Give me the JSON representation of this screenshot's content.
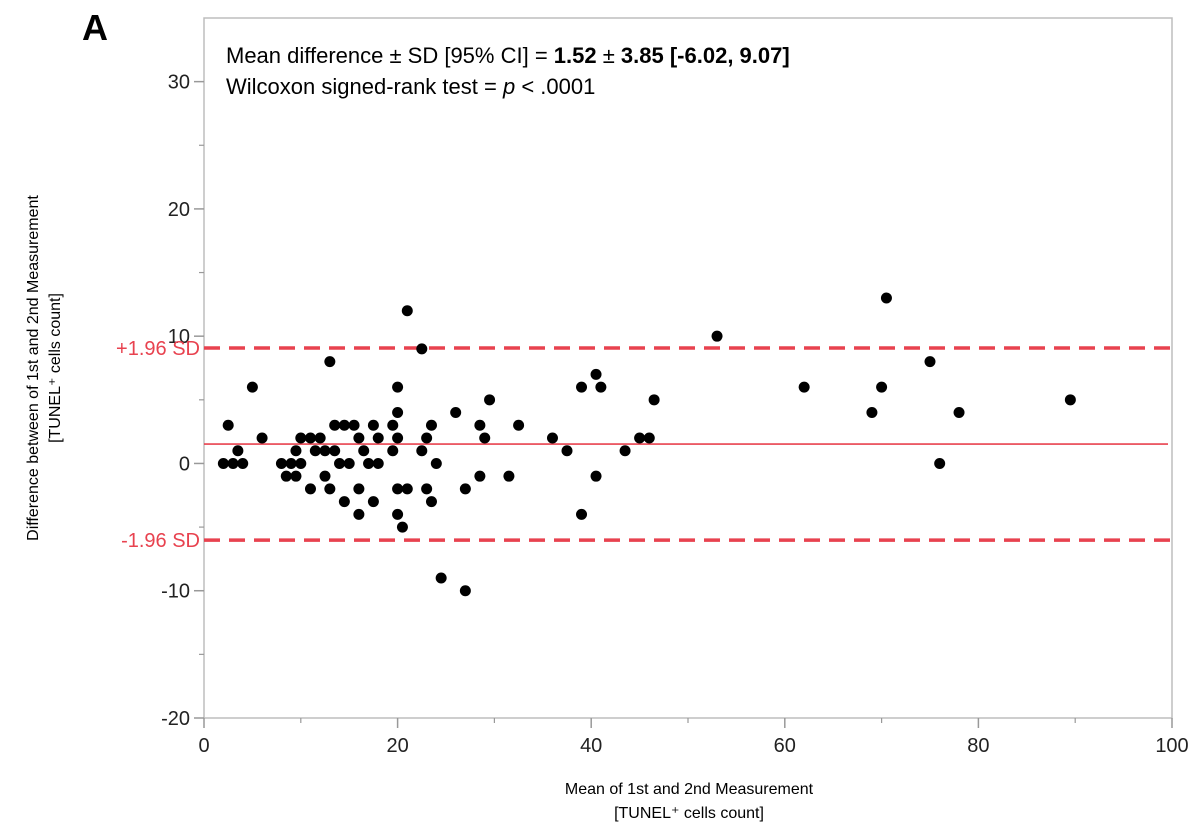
{
  "panel_label": "A",
  "chart_data": {
    "type": "scatter",
    "title": "",
    "xlabel_line1": "Mean of 1st and 2nd Measurement",
    "xlabel_line2": "[TUNEL⁺ cells count]",
    "ylabel_line1": "Difference between of 1st and 2nd Measurement",
    "ylabel_line2": "[TUNEL⁺ cells count]",
    "xlim": [
      0,
      100
    ],
    "ylim": [
      -20,
      35
    ],
    "x_ticks": [
      0,
      20,
      40,
      60,
      80,
      100
    ],
    "y_ticks": [
      -20,
      -10,
      0,
      10,
      20,
      30
    ],
    "grid": false,
    "annotation": {
      "line1_prefix": "Mean difference ± SD [95% CI] = ",
      "mean": "1.52",
      "pm": " ± ",
      "sd_ci": "3.85 [-6.02, 9.07]",
      "line2_prefix": "Wilcoxon signed-rank test = ",
      "p_symbol": "p",
      "line2_suffix": " < .0001"
    },
    "mean_difference": 1.52,
    "upper_loa": 9.07,
    "lower_loa": -6.02,
    "upper_loa_label": "+1.96 SD",
    "lower_loa_label": "-1.96 SD",
    "line_color": "#e8424f",
    "point_color": "#000000",
    "points": [
      [
        2,
        0
      ],
      [
        2.5,
        3
      ],
      [
        3,
        0
      ],
      [
        3.5,
        1
      ],
      [
        4,
        0
      ],
      [
        5,
        6
      ],
      [
        6,
        2
      ],
      [
        8,
        0
      ],
      [
        8.5,
        -1
      ],
      [
        9,
        0
      ],
      [
        9.5,
        1
      ],
      [
        9.5,
        -1
      ],
      [
        10,
        2
      ],
      [
        10,
        0
      ],
      [
        11,
        2
      ],
      [
        11,
        -2
      ],
      [
        11.5,
        1
      ],
      [
        12,
        2
      ],
      [
        12.5,
        1
      ],
      [
        12.5,
        -1
      ],
      [
        13,
        -2
      ],
      [
        13,
        8
      ],
      [
        13.5,
        3
      ],
      [
        13.5,
        1
      ],
      [
        14,
        0
      ],
      [
        14.5,
        3
      ],
      [
        14.5,
        -3
      ],
      [
        15,
        0
      ],
      [
        15.5,
        3
      ],
      [
        16,
        2
      ],
      [
        16,
        -2
      ],
      [
        16,
        -4
      ],
      [
        16.5,
        1
      ],
      [
        17,
        0
      ],
      [
        17.5,
        3
      ],
      [
        17.5,
        -3
      ],
      [
        18,
        2
      ],
      [
        18,
        0
      ],
      [
        19.5,
        3
      ],
      [
        19.5,
        1
      ],
      [
        20,
        6
      ],
      [
        20,
        4
      ],
      [
        20,
        2
      ],
      [
        20,
        -2
      ],
      [
        20,
        -4
      ],
      [
        20.5,
        -5
      ],
      [
        21,
        12
      ],
      [
        21,
        -2
      ],
      [
        22.5,
        9
      ],
      [
        22.5,
        1
      ],
      [
        23,
        2
      ],
      [
        23,
        -2
      ],
      [
        23.5,
        3
      ],
      [
        23.5,
        -3
      ],
      [
        24,
        0
      ],
      [
        24.5,
        -9
      ],
      [
        26,
        4
      ],
      [
        27,
        -2
      ],
      [
        27,
        -10
      ],
      [
        28.5,
        3
      ],
      [
        28.5,
        -1
      ],
      [
        29,
        2
      ],
      [
        29.5,
        5
      ],
      [
        31.5,
        -1
      ],
      [
        32.5,
        3
      ],
      [
        36,
        2
      ],
      [
        37.5,
        1
      ],
      [
        39,
        6
      ],
      [
        39,
        -4
      ],
      [
        40.5,
        7
      ],
      [
        40.5,
        -1
      ],
      [
        41,
        6
      ],
      [
        43.5,
        1
      ],
      [
        45,
        2
      ],
      [
        46,
        2
      ],
      [
        46.5,
        5
      ],
      [
        53,
        10
      ],
      [
        62,
        6
      ],
      [
        69,
        4
      ],
      [
        70,
        6
      ],
      [
        70.5,
        13
      ],
      [
        75,
        8
      ],
      [
        76,
        0
      ],
      [
        78,
        4
      ],
      [
        89.5,
        5
      ]
    ]
  }
}
